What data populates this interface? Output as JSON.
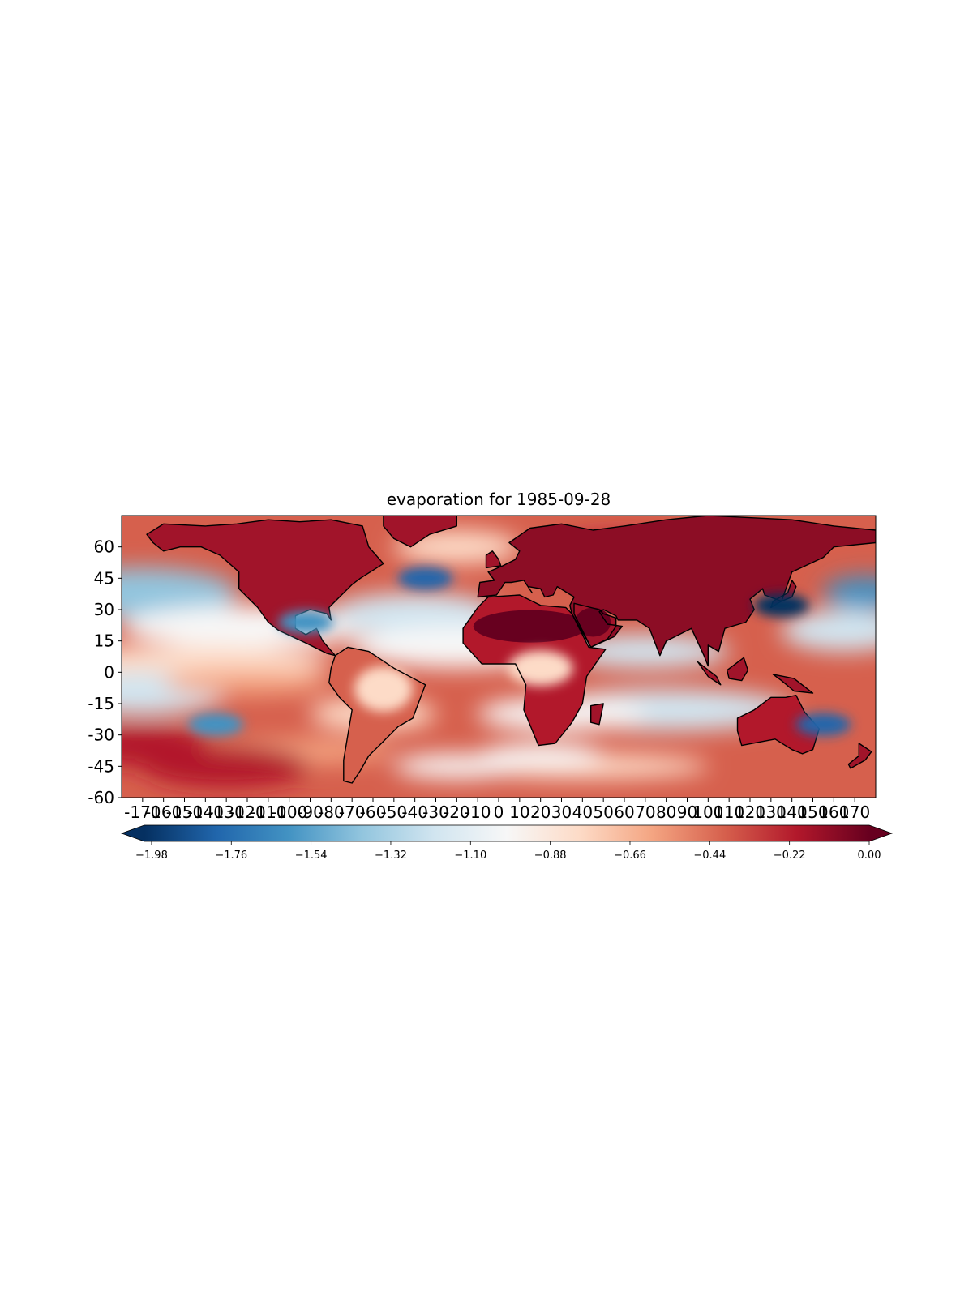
{
  "title": "evaporation for 1985-09-28",
  "map": {
    "projection": "PlateCarree",
    "lon_range": [
      -180,
      180
    ],
    "lat_range": [
      -60,
      75
    ],
    "lat_ticks": [
      "60",
      "45",
      "30",
      "15",
      "0",
      "-15",
      "-30",
      "-45",
      "-60"
    ],
    "lon_ticks": [
      "-170",
      "-160",
      "-150",
      "-140",
      "-130",
      "-120",
      "-110",
      "-100",
      "-90",
      "-80",
      "-70",
      "-60",
      "-50",
      "-40",
      "-30",
      "-20",
      "-10",
      "0",
      "10",
      "20",
      "30",
      "40",
      "50",
      "60",
      "70",
      "80",
      "90",
      "100",
      "110",
      "120",
      "130",
      "140",
      "150",
      "160",
      "170"
    ],
    "coastlines": true,
    "colormap": "RdBu_r"
  },
  "colorbar": {
    "ticks": [
      "−1.98",
      "−1.76",
      "−1.54",
      "−1.32",
      "−1.10",
      "−0.88",
      "−0.66",
      "−0.44",
      "−0.22",
      "0.00"
    ],
    "min": -2.0,
    "max": 0.0,
    "extend": "both",
    "colors": [
      "#053061",
      "#2166ac",
      "#4393c3",
      "#92c5de",
      "#d1e5f0",
      "#f7f7f7",
      "#fddbc7",
      "#f4a582",
      "#d6604d",
      "#b2182b",
      "#67001f"
    ]
  },
  "regions": [
    {
      "name": "north-atlantic-low",
      "lon": -35,
      "lat": 45,
      "value": -1.9
    },
    {
      "name": "kuroshio-low",
      "lon": 135,
      "lat": 32,
      "value": -1.95
    },
    {
      "name": "south-pacific-low",
      "lon": -135,
      "lat": -25,
      "value": -1.7
    },
    {
      "name": "gulf-of-mexico-low",
      "lon": -92,
      "lat": 24,
      "value": -1.7
    },
    {
      "name": "sahara-high",
      "lon": 10,
      "lat": 22,
      "value": 0.0
    },
    {
      "name": "australia-high",
      "lon": 135,
      "lat": -25,
      "value": -0.15
    },
    {
      "name": "east-australia-low",
      "lon": 155,
      "lat": -25,
      "value": -1.8
    }
  ]
}
